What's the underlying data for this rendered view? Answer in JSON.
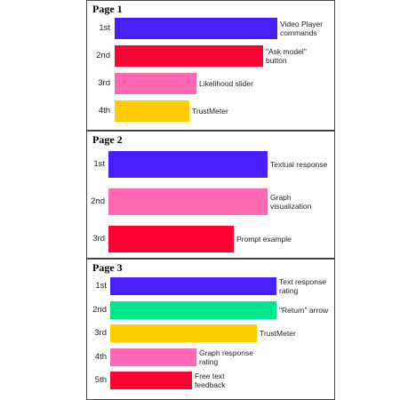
{
  "chart_data": [
    {
      "type": "bar",
      "title": "Page 1",
      "bars": [
        {
          "rank": "1st",
          "label": "Video Player\ncommands",
          "value": 1.0,
          "color": "#4a1fff"
        },
        {
          "rank": "2nd",
          "label": "\"Ask model\"\nbutton",
          "value": 0.91,
          "color": "#ff0033"
        },
        {
          "rank": "3rd",
          "label": "Likelihood slider",
          "value": 0.5,
          "color": "#ff69b4"
        },
        {
          "rank": "4th",
          "label": "TrustMeter",
          "value": 0.46,
          "color": "#ffcc00"
        }
      ]
    },
    {
      "type": "bar",
      "title": "Page 2",
      "bars": [
        {
          "rank": "1st",
          "label": "Textual response",
          "value": 1.0,
          "color": "#4a1fff"
        },
        {
          "rank": "2nd",
          "label": "Graph\nvisualization",
          "value": 1.0,
          "color": "#ff69b4"
        },
        {
          "rank": "3rd",
          "label": "Prompt example",
          "value": 0.79,
          "color": "#ff0033"
        }
      ]
    },
    {
      "type": "bar",
      "title": "Page 3",
      "bars": [
        {
          "rank": "1st",
          "label": "Text response\nrating",
          "value": 1.0,
          "color": "#4a1fff"
        },
        {
          "rank": "2nd",
          "label": "\"Return\" arrow",
          "value": 1.0,
          "color": "#00e68a"
        },
        {
          "rank": "3rd",
          "label": "TrustMeter",
          "value": 0.88,
          "color": "#ffcc00"
        },
        {
          "rank": "4th",
          "label": "Graph response\nrating",
          "value": 0.52,
          "color": "#ff69b4"
        },
        {
          "rank": "5th",
          "label": "Free text\nfeedback",
          "value": 0.49,
          "color": "#ff0033"
        }
      ]
    }
  ]
}
